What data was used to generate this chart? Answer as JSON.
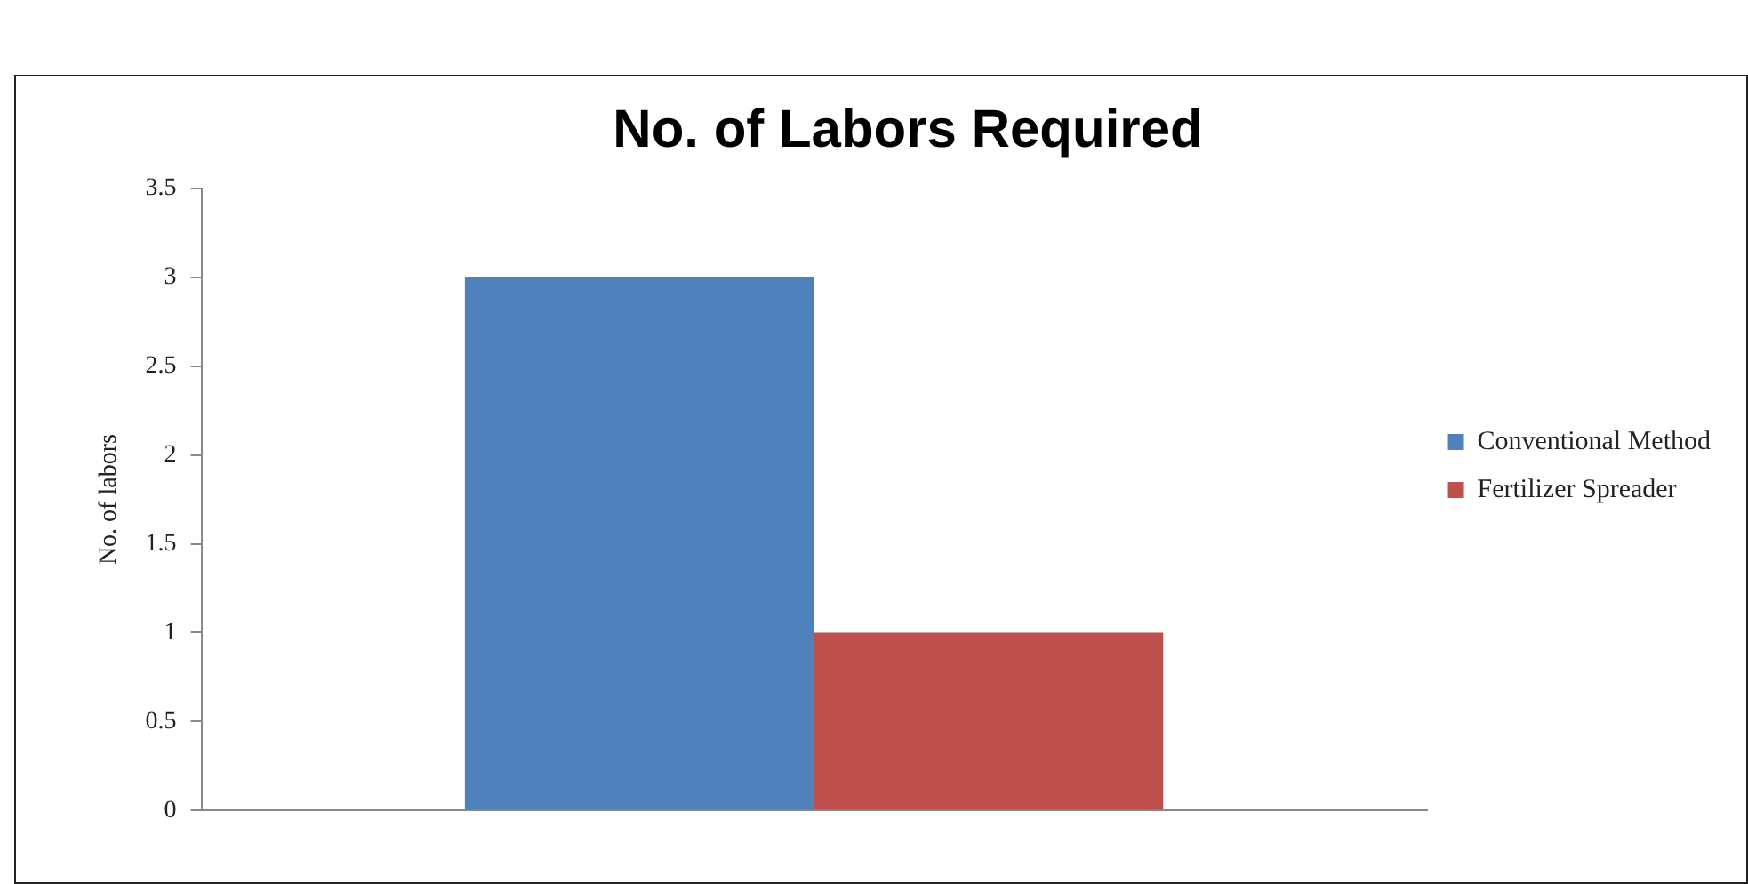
{
  "chart_data": {
    "type": "bar",
    "title": "No. of Labors Required",
    "ylabel": "No. of labors",
    "categories": [
      null
    ],
    "series": [
      {
        "name": "Conventional Method",
        "color": "#4f81bd",
        "values": [
          3
        ]
      },
      {
        "name": "Fertilizer Spreader",
        "color": "#c0504d",
        "values": [
          1
        ]
      }
    ],
    "ylim": [
      0,
      3.5
    ],
    "yticks": [
      0,
      0.5,
      1,
      1.5,
      2,
      2.5,
      3,
      3.5
    ],
    "grid": false,
    "legend": "right"
  }
}
